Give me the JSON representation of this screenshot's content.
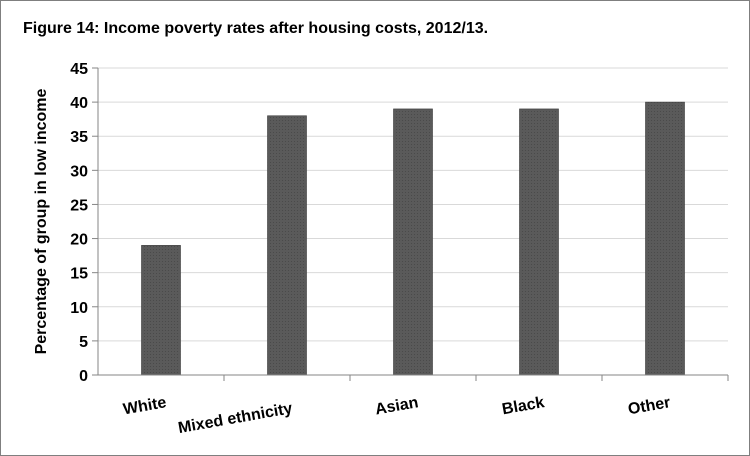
{
  "chart_data": {
    "type": "bar",
    "title": "Figure 14: Income poverty rates after housing costs, 2012/13.",
    "xlabel": "",
    "ylabel": "Percentage of group in low income",
    "categories": [
      "White",
      "Mixed ethnicity",
      "Asian",
      "Black",
      "Other"
    ],
    "values": [
      19,
      38,
      39,
      39,
      40
    ],
    "ylim": [
      0,
      45
    ],
    "yticks": [
      "0",
      "5",
      "10",
      "15",
      "20",
      "25",
      "30",
      "35",
      "40",
      "45"
    ],
    "grid": true,
    "legend": "none",
    "bar_color": "#5a5a5a"
  }
}
